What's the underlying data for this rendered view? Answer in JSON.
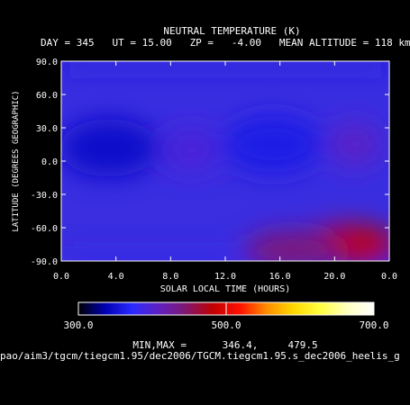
{
  "header": {
    "title": "NEUTRAL TEMPERATURE (K)",
    "subtitle": "DAY = 345   UT = 15.00   ZP =   -4.00   MEAN ALTITUDE = 118 km"
  },
  "footer": {
    "minmax": "MIN,MAX =      346.4,     479.5",
    "path": "pao/aim3/tgcm/tiegcm1.95/dec2006/TGCM.tiegcm1.95.s_dec2006_heelis_g"
  },
  "chart_data": {
    "type": "heatmap",
    "xlabel": "SOLAR LOCAL TIME (HOURS)",
    "ylabel": "LATITUDE (DEGREES GEOGRAPHIC)",
    "xlim": [
      0,
      24
    ],
    "ylim": [
      -90,
      90
    ],
    "xticks": [
      "0.0",
      "4.0",
      "8.0",
      "12.0",
      "16.0",
      "20.0",
      "0.0"
    ],
    "yticks": [
      "90.0",
      "60.0",
      "30.0",
      "0.0",
      "-30.0",
      "-60.0",
      "-90.0"
    ],
    "min": 346.4,
    "max": 479.5,
    "colorbar": {
      "range": [
        300,
        700
      ],
      "ticks": [
        "300.0",
        "500.0",
        "700.0"
      ],
      "colors": [
        "#000000",
        "#0000b4",
        "#2a2aff",
        "#6020c0",
        "#801870",
        "#c00000",
        "#ff1000",
        "#ff8c00",
        "#ffd700",
        "#ffff40",
        "#ffffc0",
        "#ffffff"
      ]
    },
    "features": [
      {
        "kind": "cold",
        "x": 3.5,
        "y": 12,
        "value": 346.4
      },
      {
        "kind": "cold",
        "x": 15.5,
        "y": 15,
        "value": 360
      },
      {
        "kind": "warm",
        "x": 21.5,
        "y": 15,
        "value": 405
      },
      {
        "kind": "warm",
        "x": 9.5,
        "y": 10,
        "value": 395
      },
      {
        "kind": "hot",
        "x": 21.0,
        "y": -75,
        "value": 479.5
      },
      {
        "kind": "hot",
        "x": 17.0,
        "y": -80,
        "value": 440
      }
    ]
  }
}
